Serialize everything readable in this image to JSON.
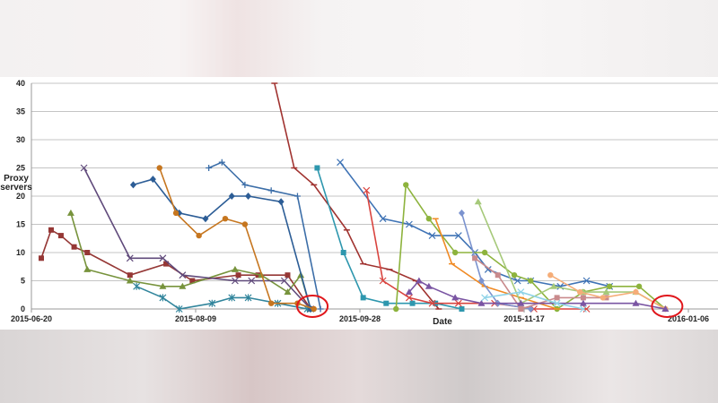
{
  "chart_data": {
    "type": "line",
    "title": "",
    "xlabel": "Date",
    "ylabel": "Proxy servers",
    "ylim": [
      0,
      40
    ],
    "yticks": [
      0,
      5,
      10,
      15,
      20,
      25,
      30,
      35,
      40
    ],
    "xlim": [
      "2015-06-20",
      "2016-01-15"
    ],
    "xticks": [
      "2015-06-20",
      "2015-08-09",
      "2015-09-28",
      "2015-11-17",
      "2016-01-06"
    ],
    "grid": "horizontal",
    "legend": "none",
    "annotations": [
      {
        "type": "red-circle",
        "at": "2015-09-13"
      },
      {
        "type": "red-circle",
        "at": "2015-12-30"
      }
    ],
    "series": [
      {
        "color": "#953735",
        "marker": "square",
        "points": [
          [
            "2015-06-23",
            9
          ],
          [
            "2015-06-26",
            14
          ],
          [
            "2015-06-29",
            13
          ],
          [
            "2015-07-03",
            11
          ],
          [
            "2015-07-07",
            10
          ],
          [
            "2015-07-20",
            6
          ],
          [
            "2015-07-31",
            8
          ],
          [
            "2015-08-08",
            5
          ],
          [
            "2015-08-22",
            6
          ],
          [
            "2015-08-28",
            6
          ],
          [
            "2015-09-06",
            6
          ],
          [
            "2015-09-13",
            0
          ]
        ]
      },
      {
        "color": "#77933c",
        "marker": "triangle",
        "points": [
          [
            "2015-07-02",
            17
          ],
          [
            "2015-07-07",
            7
          ],
          [
            "2015-07-20",
            5
          ],
          [
            "2015-07-30",
            4
          ],
          [
            "2015-08-05",
            4
          ],
          [
            "2015-08-21",
            7
          ],
          [
            "2015-08-29",
            6
          ],
          [
            "2015-09-06",
            3
          ],
          [
            "2015-09-10",
            6
          ],
          [
            "2015-09-13",
            0
          ]
        ]
      },
      {
        "color": "#604a7b",
        "marker": "x",
        "points": [
          [
            "2015-07-06",
            25
          ],
          [
            "2015-07-20",
            9
          ],
          [
            "2015-07-30",
            9
          ],
          [
            "2015-08-05",
            6
          ],
          [
            "2015-08-21",
            5
          ],
          [
            "2015-08-26",
            5
          ],
          [
            "2015-09-05",
            5
          ],
          [
            "2015-09-13",
            0
          ]
        ]
      },
      {
        "color": "#31859c",
        "marker": "star",
        "points": [
          [
            "2015-07-22",
            4
          ],
          [
            "2015-07-30",
            2
          ],
          [
            "2015-08-04",
            0
          ],
          [
            "2015-08-14",
            1
          ],
          [
            "2015-08-20",
            2
          ],
          [
            "2015-08-25",
            2
          ],
          [
            "2015-09-03",
            1
          ],
          [
            "2015-09-12",
            0
          ]
        ]
      },
      {
        "color": "#2c5d96",
        "marker": "diamond",
        "points": [
          [
            "2015-07-21",
            22
          ],
          [
            "2015-07-27",
            23
          ],
          [
            "2015-08-04",
            17
          ],
          [
            "2015-08-12",
            16
          ],
          [
            "2015-08-20",
            20
          ],
          [
            "2015-08-25",
            20
          ],
          [
            "2015-09-04",
            19
          ],
          [
            "2015-09-13",
            0
          ]
        ]
      },
      {
        "color": "#c6761f",
        "marker": "circle",
        "points": [
          [
            "2015-07-29",
            25
          ],
          [
            "2015-08-03",
            17
          ],
          [
            "2015-08-10",
            13
          ],
          [
            "2015-08-18",
            16
          ],
          [
            "2015-08-24",
            15
          ],
          [
            "2015-09-01",
            1
          ],
          [
            "2015-09-09",
            1
          ],
          [
            "2015-09-14",
            0
          ]
        ]
      },
      {
        "color": "#3c6ea8",
        "marker": "plus",
        "points": [
          [
            "2015-08-13",
            25
          ],
          [
            "2015-08-17",
            26
          ],
          [
            "2015-08-24",
            22
          ],
          [
            "2015-09-01",
            21
          ],
          [
            "2015-09-09",
            20
          ],
          [
            "2015-09-16",
            0
          ]
        ]
      },
      {
        "color": "#a0322f",
        "marker": "dash",
        "points": [
          [
            "2015-09-02",
            40
          ],
          [
            "2015-09-08",
            25
          ],
          [
            "2015-09-14",
            22
          ],
          [
            "2015-09-24",
            14
          ],
          [
            "2015-09-29",
            8
          ],
          [
            "2015-10-07",
            7
          ],
          [
            "2015-10-15",
            5
          ],
          [
            "2015-10-22",
            0
          ]
        ]
      },
      {
        "color": "#2e97ae",
        "marker": "square",
        "points": [
          [
            "2015-09-15",
            25
          ],
          [
            "2015-09-23",
            10
          ],
          [
            "2015-09-29",
            2
          ],
          [
            "2015-10-06",
            1
          ],
          [
            "2015-10-14",
            1
          ],
          [
            "2015-10-21",
            1
          ],
          [
            "2015-10-29",
            0
          ]
        ]
      },
      {
        "color": "#3f73b5",
        "marker": "x",
        "points": [
          [
            "2015-09-22",
            26
          ],
          [
            "2015-10-05",
            16
          ],
          [
            "2015-10-13",
            15
          ],
          [
            "2015-10-20",
            13
          ],
          [
            "2015-10-28",
            13
          ],
          [
            "2015-11-02",
            10
          ],
          [
            "2015-11-06",
            7
          ],
          [
            "2015-11-15",
            5
          ],
          [
            "2015-11-19",
            5
          ],
          [
            "2015-11-28",
            4
          ],
          [
            "2015-12-06",
            5
          ],
          [
            "2015-12-13",
            4
          ]
        ]
      },
      {
        "color": "#d9443f",
        "marker": "x",
        "points": [
          [
            "2015-09-30",
            21
          ],
          [
            "2015-10-05",
            5
          ],
          [
            "2015-10-13",
            2
          ],
          [
            "2015-10-20",
            1
          ],
          [
            "2015-10-28",
            1
          ],
          [
            "2015-11-08",
            1
          ],
          [
            "2015-11-20",
            0
          ],
          [
            "2015-12-06",
            0
          ]
        ]
      },
      {
        "color": "#8db33d",
        "marker": "circle",
        "points": [
          [
            "2015-10-09",
            0
          ],
          [
            "2015-10-12",
            22
          ],
          [
            "2015-10-19",
            16
          ],
          [
            "2015-10-27",
            10
          ],
          [
            "2015-11-05",
            10
          ],
          [
            "2015-11-14",
            6
          ],
          [
            "2015-11-19",
            5
          ],
          [
            "2015-11-27",
            0
          ],
          [
            "2015-12-05",
            3
          ],
          [
            "2015-12-13",
            4
          ],
          [
            "2015-12-22",
            4
          ],
          [
            "2015-12-30",
            0
          ]
        ]
      },
      {
        "color": "#f08a24",
        "marker": "dash",
        "points": [
          [
            "2015-10-21",
            16
          ],
          [
            "2015-10-26",
            8
          ],
          [
            "2015-11-05",
            4
          ],
          [
            "2015-11-16",
            2
          ],
          [
            "2015-11-27",
            0
          ]
        ]
      },
      {
        "color": "#7b93cf",
        "marker": "diamond",
        "points": [
          [
            "2015-10-29",
            17
          ],
          [
            "2015-11-04",
            5
          ],
          [
            "2015-11-09",
            1
          ],
          [
            "2015-11-19",
            0
          ]
        ]
      },
      {
        "color": "#a6c97a",
        "marker": "triangle",
        "points": [
          [
            "2015-11-03",
            19
          ],
          [
            "2015-11-16",
            1
          ],
          [
            "2015-11-26",
            4
          ],
          [
            "2015-12-05",
            3
          ],
          [
            "2015-12-12",
            3
          ],
          [
            "2015-12-21",
            3
          ],
          [
            "2015-12-30",
            0
          ]
        ]
      },
      {
        "color": "#c98a8c",
        "marker": "square",
        "points": [
          [
            "2015-11-02",
            9
          ],
          [
            "2015-11-09",
            6
          ],
          [
            "2015-11-16",
            0
          ],
          [
            "2015-11-27",
            2
          ],
          [
            "2015-12-05",
            2
          ],
          [
            "2015-12-12",
            2
          ]
        ]
      },
      {
        "color": "#f5ad78",
        "marker": "circle",
        "points": [
          [
            "2015-11-25",
            6
          ],
          [
            "2015-12-04",
            3
          ],
          [
            "2015-12-11",
            2
          ],
          [
            "2015-12-21",
            3
          ],
          [
            "2015-12-30",
            0
          ]
        ]
      },
      {
        "color": "#7a55a3",
        "marker": "triangle",
        "points": [
          [
            "2015-10-13",
            3
          ],
          [
            "2015-10-16",
            5
          ],
          [
            "2015-10-19",
            4
          ],
          [
            "2015-10-27",
            2
          ],
          [
            "2015-11-04",
            1
          ],
          [
            "2015-11-16",
            1
          ],
          [
            "2015-12-05",
            1
          ],
          [
            "2015-12-21",
            1
          ],
          [
            "2015-12-30",
            0
          ]
        ]
      },
      {
        "color": "#8fd3e8",
        "marker": "x",
        "points": [
          [
            "2015-11-05",
            2
          ],
          [
            "2015-11-16",
            3
          ],
          [
            "2015-11-27",
            1
          ],
          [
            "2015-12-05",
            0
          ]
        ]
      }
    ]
  }
}
